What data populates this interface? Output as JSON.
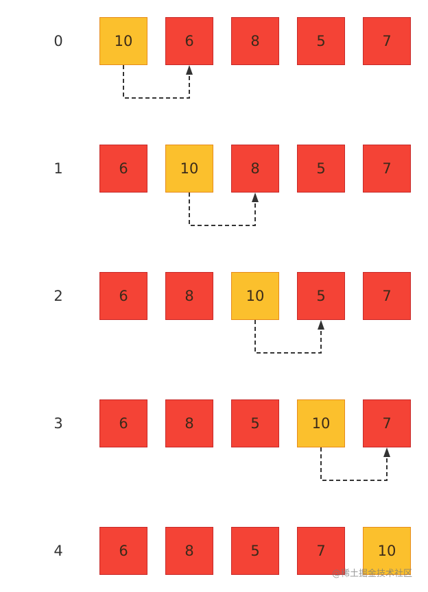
{
  "colors": {
    "normal": "#f44336",
    "highlight": "#fbc02d",
    "arrow": "#333333"
  },
  "rows": [
    {
      "label": "0",
      "values": [
        "10",
        "6",
        "8",
        "5",
        "7"
      ],
      "highlight": 0,
      "arrow_to": 1
    },
    {
      "label": "1",
      "values": [
        "6",
        "10",
        "8",
        "5",
        "7"
      ],
      "highlight": 1,
      "arrow_to": 2
    },
    {
      "label": "2",
      "values": [
        "6",
        "8",
        "10",
        "5",
        "7"
      ],
      "highlight": 2,
      "arrow_to": 3
    },
    {
      "label": "3",
      "values": [
        "6",
        "8",
        "5",
        "10",
        "7"
      ],
      "highlight": 3,
      "arrow_to": 4
    },
    {
      "label": "4",
      "values": [
        "6",
        "8",
        "5",
        "7",
        "10"
      ],
      "highlight": 4,
      "arrow_to": null
    }
  ],
  "watermark": "@稀土掘金技术社区"
}
